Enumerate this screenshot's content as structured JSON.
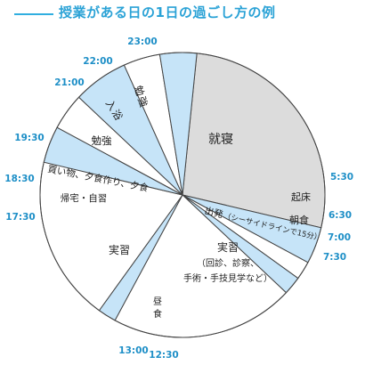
{
  "title": "授業がある日の1日の過ごし方の例",
  "chart_data": {
    "type": "pie",
    "title": "授業がある日の1日の過ごし方の例",
    "start_time": "23:00",
    "clockwise": true,
    "slices": [
      {
        "label": "就寝",
        "start": "23:00",
        "end": "5:30",
        "hours": 6.5
      },
      {
        "label": "起床",
        "start": "5:30",
        "end": "6:30",
        "hours": 1.0
      },
      {
        "label": "朝食",
        "start": "6:30",
        "end": "7:00",
        "hours": 0.5
      },
      {
        "label": "出発（シーサイドラインで15分）",
        "start": "7:00",
        "end": "7:30",
        "hours": 0.5
      },
      {
        "label": "実習（回診、診察、手術・手技見学など）",
        "start": "7:30",
        "end": "12:30",
        "hours": 5.0
      },
      {
        "label": "昼食",
        "start": "12:30",
        "end": "13:00",
        "hours": 0.5
      },
      {
        "label": "実習",
        "start": "13:00",
        "end": "17:30",
        "hours": 4.5
      },
      {
        "label": "帰宅・自習",
        "start": "17:30",
        "end": "18:30",
        "hours": 1.0
      },
      {
        "label": "買い物、夕食作り、夕食",
        "start": "18:30",
        "end": "19:30",
        "hours": 1.0
      },
      {
        "label": "勉強",
        "start": "19:30",
        "end": "21:00",
        "hours": 1.5
      },
      {
        "label": "入浴",
        "start": "21:00",
        "end": "22:00",
        "hours": 1.0
      },
      {
        "label": "勉強",
        "start": "22:00",
        "end": "23:00",
        "hours": 1.0
      }
    ],
    "colors": {
      "blue": "#c6e4f8",
      "gray": "#dcdcdc",
      "white": "#ffffff",
      "stroke": "#444444",
      "accent": "#2aa2d6"
    }
  },
  "labels": {
    "sleep": "就寝",
    "wake": "起床",
    "breakfast": "朝食",
    "depart": "出発",
    "depart_note": "（シーサイドラインで15分）",
    "practice_am_1": "実習",
    "practice_am_2": "（回診、診察、",
    "practice_am_3": "手術・手技見学など）",
    "lunch_1": "昼",
    "lunch_2": "食",
    "practice_pm": "実習",
    "home": "帰宅・自習",
    "dinner": "買い物、夕食作り、夕食",
    "study_pm": "勉強",
    "bath_1": "入",
    "bath_2": "浴",
    "study_late_1": "勉",
    "study_late_2": "強"
  },
  "ticks": [
    "23:00",
    "5:30",
    "6:30",
    "7:00",
    "7:30",
    "12:30",
    "13:00",
    "17:30",
    "18:30",
    "19:30",
    "21:00",
    "22:00"
  ]
}
